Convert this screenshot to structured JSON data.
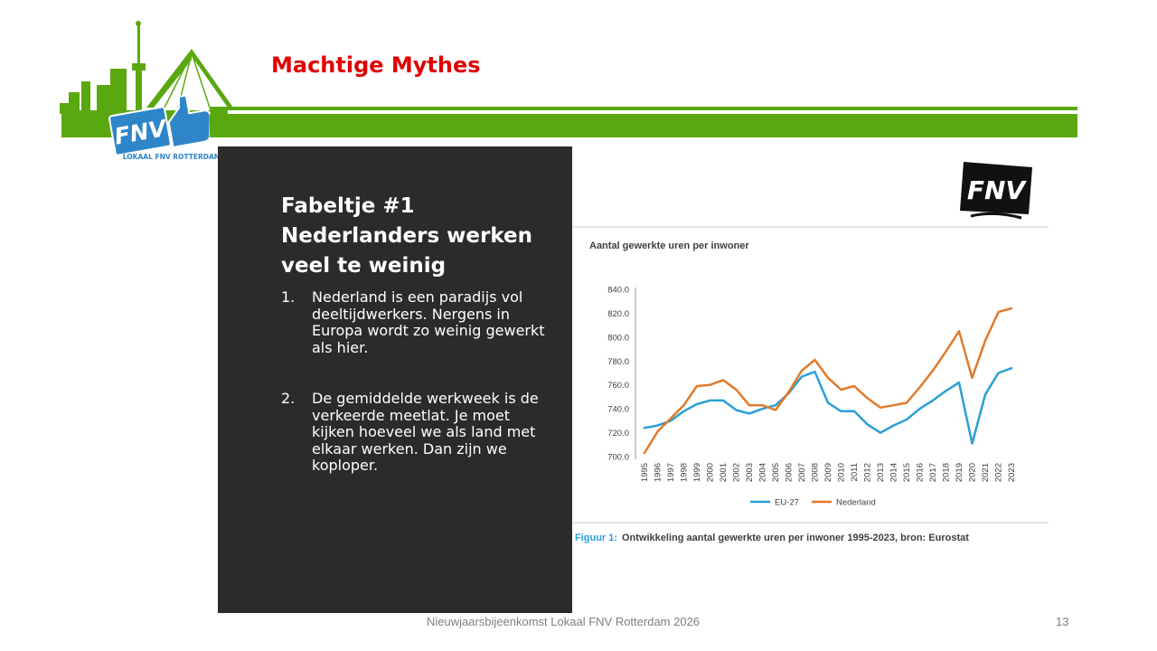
{
  "header": {
    "title": "Machtige Mythes"
  },
  "logo": {
    "text": "FNV",
    "subtext": "LOKAAL FNV ROTTERDAM"
  },
  "corner_logo": {
    "text": "FNV"
  },
  "panel": {
    "heading": "Fabeltje #1 Nederlanders werken veel te weinig",
    "items": [
      {
        "num": "1.",
        "text": "Nederland is een paradijs vol deeltijdwerkers. Nergens in Europa wordt zo weinig gewerkt als hier."
      },
      {
        "num": "2.",
        "text": "De gemiddelde werkweek is de verkeerde meetlat. Je moet kijken hoeveel we als land met elkaar werken. Dan zijn we koploper."
      }
    ]
  },
  "chart_data": {
    "type": "line",
    "title": "Aantal gewerkte uren per inwoner",
    "caption_prefix": "Figuur 1:",
    "caption": "Ontwikkeling aantal gewerkte uren per inwoner 1995-2023, bron: Eurostat",
    "x": [
      "1995",
      "1996",
      "1997",
      "1998",
      "1999",
      "2000",
      "2001",
      "2002",
      "2003",
      "2004",
      "2005",
      "2006",
      "2007",
      "2008",
      "2009",
      "2010",
      "2011",
      "2012",
      "2013",
      "2014",
      "2015",
      "2016",
      "2017",
      "2018",
      "2019",
      "2020",
      "2021",
      "2022",
      "2023"
    ],
    "yticks": [
      "700.0",
      "720.0",
      "740.0",
      "760.0",
      "780.0",
      "800.0",
      "820.0",
      "840.0"
    ],
    "ylim": [
      700,
      840
    ],
    "grid": false,
    "legend_position": "bottom",
    "series": [
      {
        "name": "EU-27",
        "color": "#2a9fd6",
        "values": [
          724,
          726,
          730,
          738,
          744,
          747,
          747,
          739,
          736,
          740,
          743,
          753,
          767,
          771,
          745,
          738,
          738,
          727,
          720,
          726,
          731,
          740,
          747,
          755,
          762,
          711,
          752,
          770,
          774
        ]
      },
      {
        "name": "Nederland",
        "color": "#e07a2a",
        "values": [
          703,
          721,
          732,
          743,
          759,
          760,
          764,
          756,
          743,
          743,
          739,
          754,
          772,
          781,
          766,
          756,
          759,
          749,
          741,
          743,
          745,
          758,
          772,
          788,
          805,
          766,
          797,
          821,
          824
        ]
      }
    ]
  },
  "footer": {
    "text": "Nieuwjaarsbijeenkomst Lokaal FNV Rotterdam 2026",
    "page": "13"
  },
  "colors": {
    "title_red": "#e00000",
    "brand_green": "#5aa80f",
    "panel_dark": "#2b2b2b",
    "fnv_blue": "#2e86c8"
  }
}
